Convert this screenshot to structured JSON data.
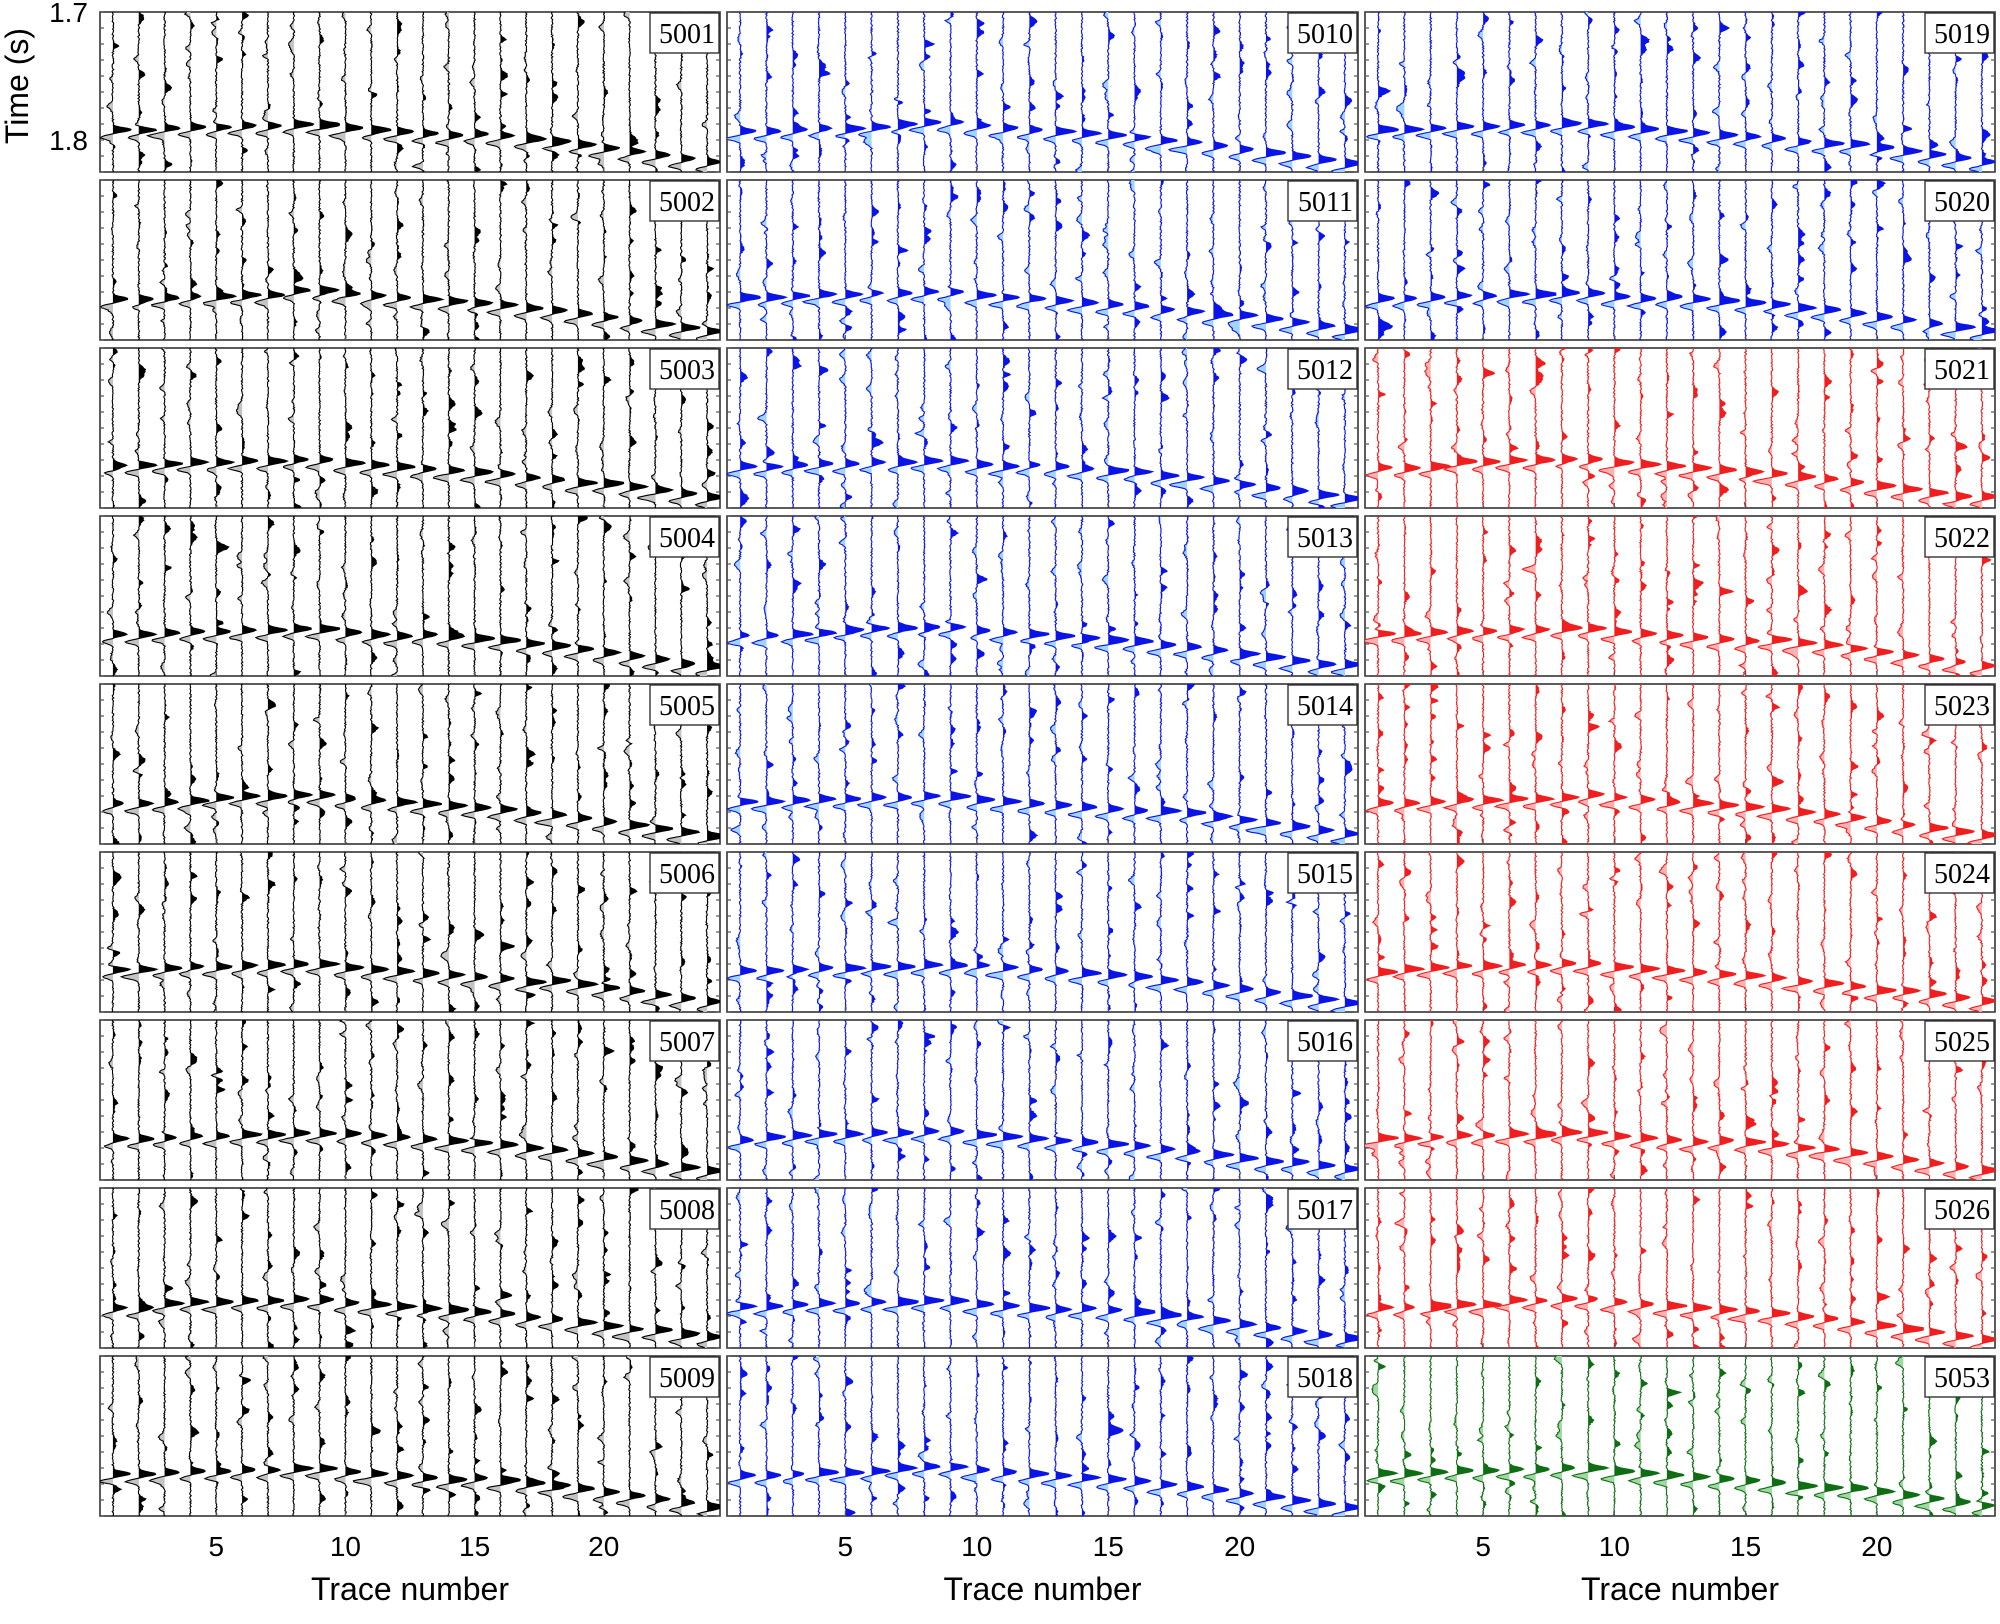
{
  "chart_data": {
    "type": "seismic-wiggle-panels",
    "layout": {
      "columns": 3,
      "rows": 9
    },
    "xlabel": "Trace number",
    "ylabel": "Time (s)",
    "x_ticks": [
      5,
      10,
      15,
      20
    ],
    "xlim": [
      0.5,
      24.5
    ],
    "y_ticks": [
      1.7,
      1.8
    ],
    "ylim": [
      1.7,
      1.825
    ],
    "trace_count": 24,
    "arrival_times_s": [
      1.7925,
      1.7925,
      1.7912,
      1.7899,
      1.7899,
      1.7886,
      1.7886,
      1.7873,
      1.7873,
      1.7899,
      1.7912,
      1.7925,
      1.7938,
      1.7951,
      1.7964,
      1.7977,
      1.8003,
      1.8016,
      1.8042,
      1.8068,
      1.8094,
      1.812,
      1.8146,
      1.8172
    ],
    "colors": {
      "black": "#000000",
      "blue": "#0a14e6",
      "red": "#f01e1e",
      "green": "#0f6e14"
    },
    "panels": [
      {
        "label": "5001",
        "column": 0,
        "row": 0,
        "color": "black"
      },
      {
        "label": "5002",
        "column": 0,
        "row": 1,
        "color": "black"
      },
      {
        "label": "5003",
        "column": 0,
        "row": 2,
        "color": "black"
      },
      {
        "label": "5004",
        "column": 0,
        "row": 3,
        "color": "black"
      },
      {
        "label": "5005",
        "column": 0,
        "row": 4,
        "color": "black"
      },
      {
        "label": "5006",
        "column": 0,
        "row": 5,
        "color": "black"
      },
      {
        "label": "5007",
        "column": 0,
        "row": 6,
        "color": "black"
      },
      {
        "label": "5008",
        "column": 0,
        "row": 7,
        "color": "black"
      },
      {
        "label": "5009",
        "column": 0,
        "row": 8,
        "color": "black"
      },
      {
        "label": "5010",
        "column": 1,
        "row": 0,
        "color": "blue"
      },
      {
        "label": "5011",
        "column": 1,
        "row": 1,
        "color": "blue"
      },
      {
        "label": "5012",
        "column": 1,
        "row": 2,
        "color": "blue"
      },
      {
        "label": "5013",
        "column": 1,
        "row": 3,
        "color": "blue"
      },
      {
        "label": "5014",
        "column": 1,
        "row": 4,
        "color": "blue"
      },
      {
        "label": "5015",
        "column": 1,
        "row": 5,
        "color": "blue"
      },
      {
        "label": "5016",
        "column": 1,
        "row": 6,
        "color": "blue"
      },
      {
        "label": "5017",
        "column": 1,
        "row": 7,
        "color": "blue"
      },
      {
        "label": "5018",
        "column": 1,
        "row": 8,
        "color": "blue"
      },
      {
        "label": "5019",
        "column": 2,
        "row": 0,
        "color": "blue"
      },
      {
        "label": "5020",
        "column": 2,
        "row": 1,
        "color": "blue"
      },
      {
        "label": "5021",
        "column": 2,
        "row": 2,
        "color": "red"
      },
      {
        "label": "5022",
        "column": 2,
        "row": 3,
        "color": "red"
      },
      {
        "label": "5023",
        "column": 2,
        "row": 4,
        "color": "red"
      },
      {
        "label": "5024",
        "column": 2,
        "row": 5,
        "color": "red"
      },
      {
        "label": "5025",
        "column": 2,
        "row": 6,
        "color": "red"
      },
      {
        "label": "5026",
        "column": 2,
        "row": 7,
        "color": "red"
      },
      {
        "label": "5053",
        "column": 2,
        "row": 8,
        "color": "green"
      }
    ]
  }
}
